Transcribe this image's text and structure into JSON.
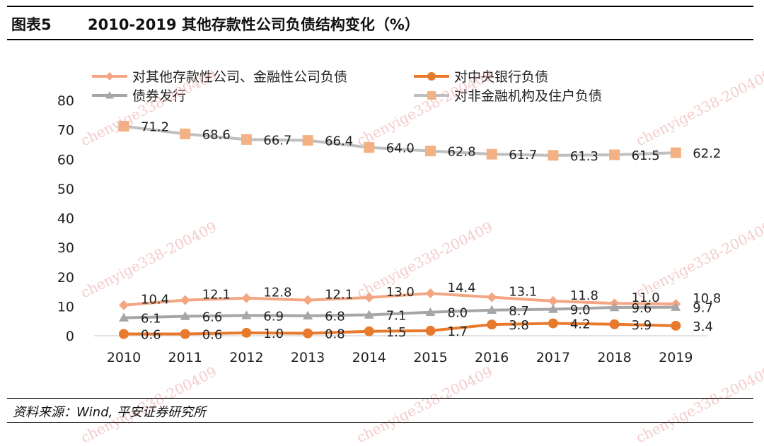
{
  "header": {
    "figure_label": "图表5",
    "title": "2010-2019 其他存款性公司负债结构变化（%）"
  },
  "source": "资料来源：Wind, 平安证券研究所",
  "watermark": "chenyige338-200409",
  "chart_data": {
    "type": "line",
    "title": "2010-2019 其他存款性公司负债结构变化（%）",
    "xlabel": "",
    "ylabel": "",
    "categories": [
      "2010",
      "2011",
      "2012",
      "2013",
      "2014",
      "2015",
      "2016",
      "2017",
      "2018",
      "2019"
    ],
    "ylim": [
      0,
      80
    ],
    "yticks": [
      0,
      10,
      20,
      30,
      40,
      50,
      60,
      70,
      80
    ],
    "grid": false,
    "legend_position": "top",
    "series": [
      {
        "name": "对其他存款性公司、金融性公司负债",
        "color": "#F4A582",
        "marker": "diamond",
        "values": [
          10.4,
          12.1,
          12.8,
          12.1,
          13.0,
          14.4,
          13.1,
          11.8,
          11.0,
          10.8
        ],
        "labels": [
          "10.4",
          "12.1",
          "12.8",
          "12.1",
          "13.0",
          "14.4",
          "13.1",
          "11.8",
          "11.0",
          "10.8"
        ]
      },
      {
        "name": "对中央银行负债",
        "color": "#E87A2D",
        "marker": "circle",
        "values": [
          0.6,
          0.6,
          1.0,
          0.8,
          1.5,
          1.7,
          3.8,
          4.2,
          3.9,
          3.4
        ],
        "labels": [
          "0.6",
          "0.6",
          "1.0",
          "0.8",
          "1.5",
          "1.7",
          "3.8",
          "4.2",
          "3.9",
          "3.4"
        ]
      },
      {
        "name": "债券发行",
        "color": "#A6A6A6",
        "marker": "triangle",
        "values": [
          6.1,
          6.6,
          6.9,
          6.8,
          7.1,
          8.0,
          8.7,
          9.0,
          9.6,
          9.7
        ],
        "labels": [
          "6.1",
          "6.6",
          "6.9",
          "6.8",
          "7.1",
          "8.0",
          "8.7",
          "9.0",
          "9.6",
          "9.7"
        ]
      },
      {
        "name": "对非金融机构及住户负债",
        "color": "#F4B183",
        "line_color": "#BFBFBF",
        "marker": "square",
        "values": [
          71.2,
          68.6,
          66.7,
          66.4,
          64.0,
          62.8,
          61.7,
          61.3,
          61.5,
          62.2
        ],
        "labels": [
          "71.2",
          "68.6",
          "66.7",
          "66.4",
          "64.0",
          "62.8",
          "61.7",
          "61.3",
          "61.5",
          "62.2"
        ]
      }
    ]
  }
}
